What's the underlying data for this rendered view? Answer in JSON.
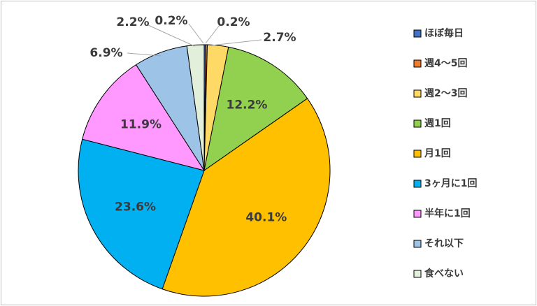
{
  "chart_data": {
    "type": "pie",
    "title": "",
    "legend_position": "right",
    "categories": [
      "ほぼ毎日",
      "週4～5回",
      "週2～3回",
      "週1回",
      "月1回",
      "3ヶ月に1回",
      "半年に1回",
      "それ以下",
      "食べない"
    ],
    "values": [
      0.2,
      0.2,
      2.7,
      12.2,
      40.1,
      23.6,
      11.9,
      6.9,
      2.2
    ],
    "labels": [
      "0.2%",
      "0.2%",
      "2.7%",
      "12.2%",
      "40.1%",
      "23.6%",
      "11.9%",
      "6.9%",
      "2.2%"
    ],
    "colors": [
      "#4472c4",
      "#ed7d31",
      "#ffd966",
      "#92d050",
      "#ffc000",
      "#00b0f0",
      "#ff99ff",
      "#9dc3e6",
      "#e2efda"
    ]
  }
}
